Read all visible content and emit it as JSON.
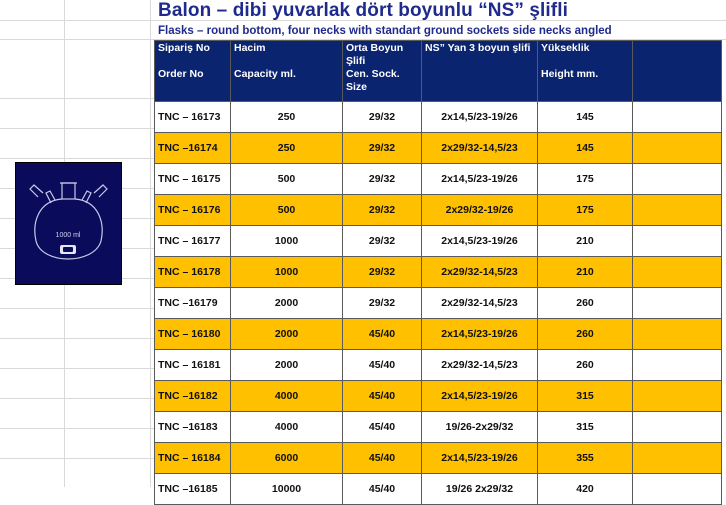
{
  "title": "Balon – dibi yuvarlak dört boyunlu “NS” şlifli",
  "subtitle": "Flasks – round bottom, four necks with standart ground sockets side necks angled",
  "flask_label": "1000 ml",
  "header": {
    "col1": {
      "tr": "Sipariş No",
      "en": "Order No"
    },
    "col2": {
      "tr": "Hacim",
      "en": "Capacity ml."
    },
    "col3": {
      "tr": "Orta Boyun Şlifi",
      "en": "Cen. Sock. Size"
    },
    "col4": {
      "tr": "NS” Yan 3 boyun şlifi",
      "en": ""
    },
    "col5": {
      "tr": "Yükseklik",
      "en": "Height mm."
    }
  },
  "rows": [
    {
      "order": "TNC – 16173",
      "capacity": "250",
      "center": "29/32",
      "side": "2x14,5/23-19/26",
      "height": "145"
    },
    {
      "order": "TNC –16174",
      "capacity": "250",
      "center": "29/32",
      "side": "2x29/32-14,5/23",
      "height": "145"
    },
    {
      "order": "TNC – 16175",
      "capacity": "500",
      "center": "29/32",
      "side": "2x14,5/23-19/26",
      "height": "175"
    },
    {
      "order": "TNC – 16176",
      "capacity": "500",
      "center": "29/32",
      "side": "2x29/32-19/26",
      "height": "175"
    },
    {
      "order": "TNC – 16177",
      "capacity": "1000",
      "center": "29/32",
      "side": "2x14,5/23-19/26",
      "height": "210"
    },
    {
      "order": "TNC – 16178",
      "capacity": "1000",
      "center": "29/32",
      "side": "2x29/32-14,5/23",
      "height": "210"
    },
    {
      "order": "TNC –16179",
      "capacity": "2000",
      "center": "29/32",
      "side": "2x29/32-14,5/23",
      "height": "260"
    },
    {
      "order": "TNC – 16180",
      "capacity": "2000",
      "center": "45/40",
      "side": "2x14,5/23-19/26",
      "height": "260"
    },
    {
      "order": "TNC – 16181",
      "capacity": "2000",
      "center": "45/40",
      "side": "2x29/32-14,5/23",
      "height": "260"
    },
    {
      "order": "TNC –16182",
      "capacity": "4000",
      "center": "45/40",
      "side": "2x14,5/23-19/26",
      "height": "315"
    },
    {
      "order": "TNC –16183",
      "capacity": "4000",
      "center": "45/40",
      "side": "19/26-2x29/32",
      "height": "315"
    },
    {
      "order": "TNC – 16184",
      "capacity": "6000",
      "center": "45/40",
      "side": "2x14,5/23-19/26",
      "height": "355"
    },
    {
      "order": "TNC –16185",
      "capacity": "10000",
      "center": "45/40",
      "side": "19/26 2x29/32",
      "height": "420"
    }
  ],
  "colors": {
    "header_bg": "#0b2470",
    "stripe": "#ffc000",
    "title": "#1f2a8c"
  }
}
